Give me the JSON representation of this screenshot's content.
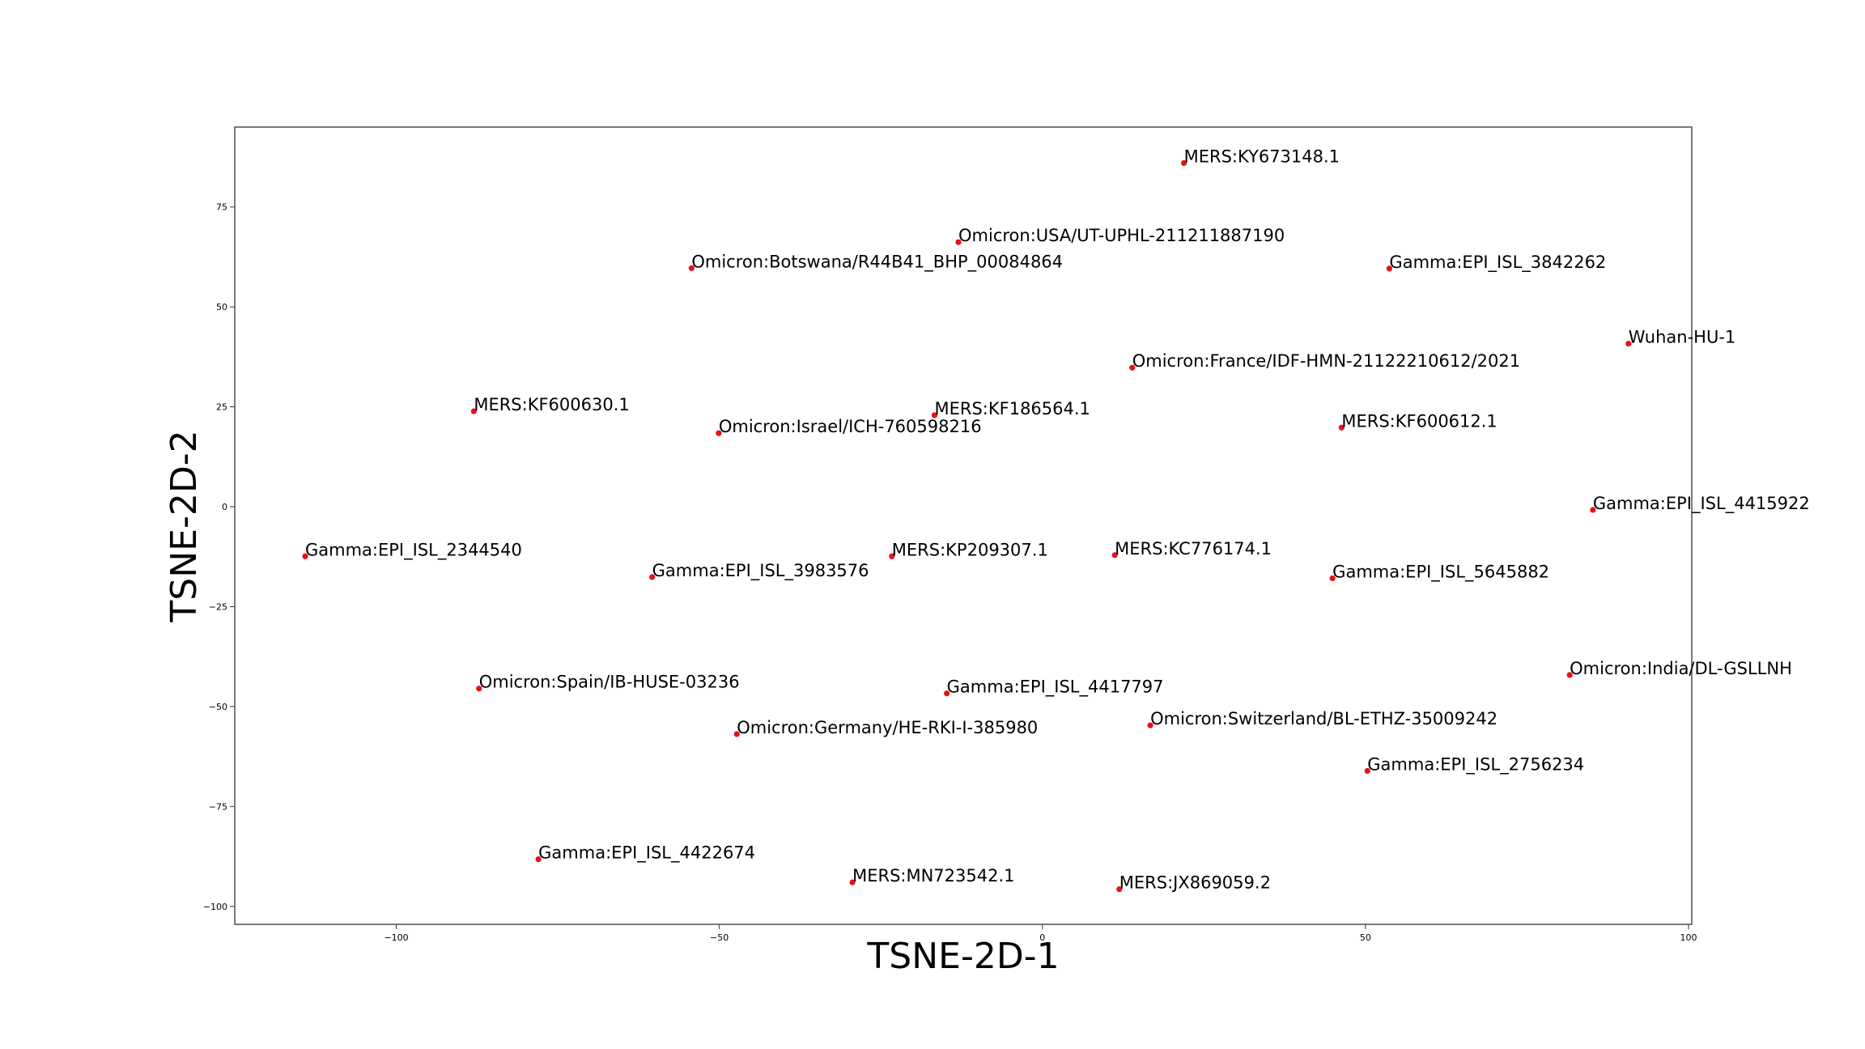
{
  "chart_data": {
    "type": "scatter",
    "xlabel": "TSNE-2D-1",
    "ylabel": "TSNE-2D-2",
    "xlim": [
      -125,
      100.5
    ],
    "ylim": [
      -104.5,
      95
    ],
    "xticks": [
      -100,
      -50,
      0,
      50,
      100
    ],
    "yticks": [
      -100,
      -75,
      -50,
      -25,
      0,
      25,
      50,
      75
    ],
    "xtick_labels": [
      "−100",
      "−50",
      "0",
      "50",
      "100"
    ],
    "ytick_labels": [
      "−100",
      "−75",
      "−50",
      "−25",
      "0",
      "25",
      "50",
      "75"
    ],
    "grid": false,
    "marker_color": "#e8101a",
    "points": [
      {
        "label": "MERS:KY673148.1",
        "x": 21.9,
        "y": 86.0
      },
      {
        "label": "Omicron:USA/UT-UPHL-211211887190",
        "x": -13.0,
        "y": 66.2
      },
      {
        "label": "Omicron:Botswana/R44B41_BHP_00084864",
        "x": -54.3,
        "y": 59.7
      },
      {
        "label": "Gamma:EPI_ISL_3842262",
        "x": 53.7,
        "y": 59.6
      },
      {
        "label": "Wuhan-HU-1",
        "x": 90.7,
        "y": 40.8
      },
      {
        "label": "Omicron:France/IDF-HMN-21122210612/2021",
        "x": 13.9,
        "y": 34.8
      },
      {
        "label": "MERS:KF600630.1",
        "x": -88.0,
        "y": 23.9
      },
      {
        "label": "MERS:KF186564.1",
        "x": -16.7,
        "y": 22.9
      },
      {
        "label": "Omicron:Israel/ICH-760598216",
        "x": -50.1,
        "y": 18.4
      },
      {
        "label": "MERS:KF600612.1",
        "x": 46.3,
        "y": 19.8
      },
      {
        "label": "Gamma:EPI_ISL_4415922",
        "x": 85.2,
        "y": -0.8
      },
      {
        "label": "Gamma:EPI_ISL_2344540",
        "x": -114.1,
        "y": -12.4
      },
      {
        "label": "MERS:KP209307.1",
        "x": -23.3,
        "y": -12.4
      },
      {
        "label": "MERS:KC776174.1",
        "x": 11.2,
        "y": -12.1
      },
      {
        "label": "Gamma:EPI_ISL_3983576",
        "x": -60.4,
        "y": -17.6
      },
      {
        "label": "Gamma:EPI_ISL_5645882",
        "x": 44.9,
        "y": -17.9
      },
      {
        "label": "Omicron:India/DL-GSLLNH",
        "x": 81.6,
        "y": -42.1
      },
      {
        "label": "Omicron:Spain/IB-HUSE-03236",
        "x": -87.2,
        "y": -45.5
      },
      {
        "label": "Gamma:EPI_ISL_4417797",
        "x": -14.8,
        "y": -46.7
      },
      {
        "label": "Omicron:Switzerland/BL-ETHZ-35009242",
        "x": 16.7,
        "y": -54.7
      },
      {
        "label": "Omicron:Germany/HE-RKI-I-385980",
        "x": -47.3,
        "y": -56.9
      },
      {
        "label": "Gamma:EPI_ISL_2756234",
        "x": 50.3,
        "y": -66.1
      },
      {
        "label": "Gamma:EPI_ISL_4422674",
        "x": -78.0,
        "y": -88.2
      },
      {
        "label": "MERS:MN723542.1",
        "x": -29.4,
        "y": -94.0
      },
      {
        "label": "MERS:JX869059.2",
        "x": 11.9,
        "y": -95.7
      }
    ]
  }
}
